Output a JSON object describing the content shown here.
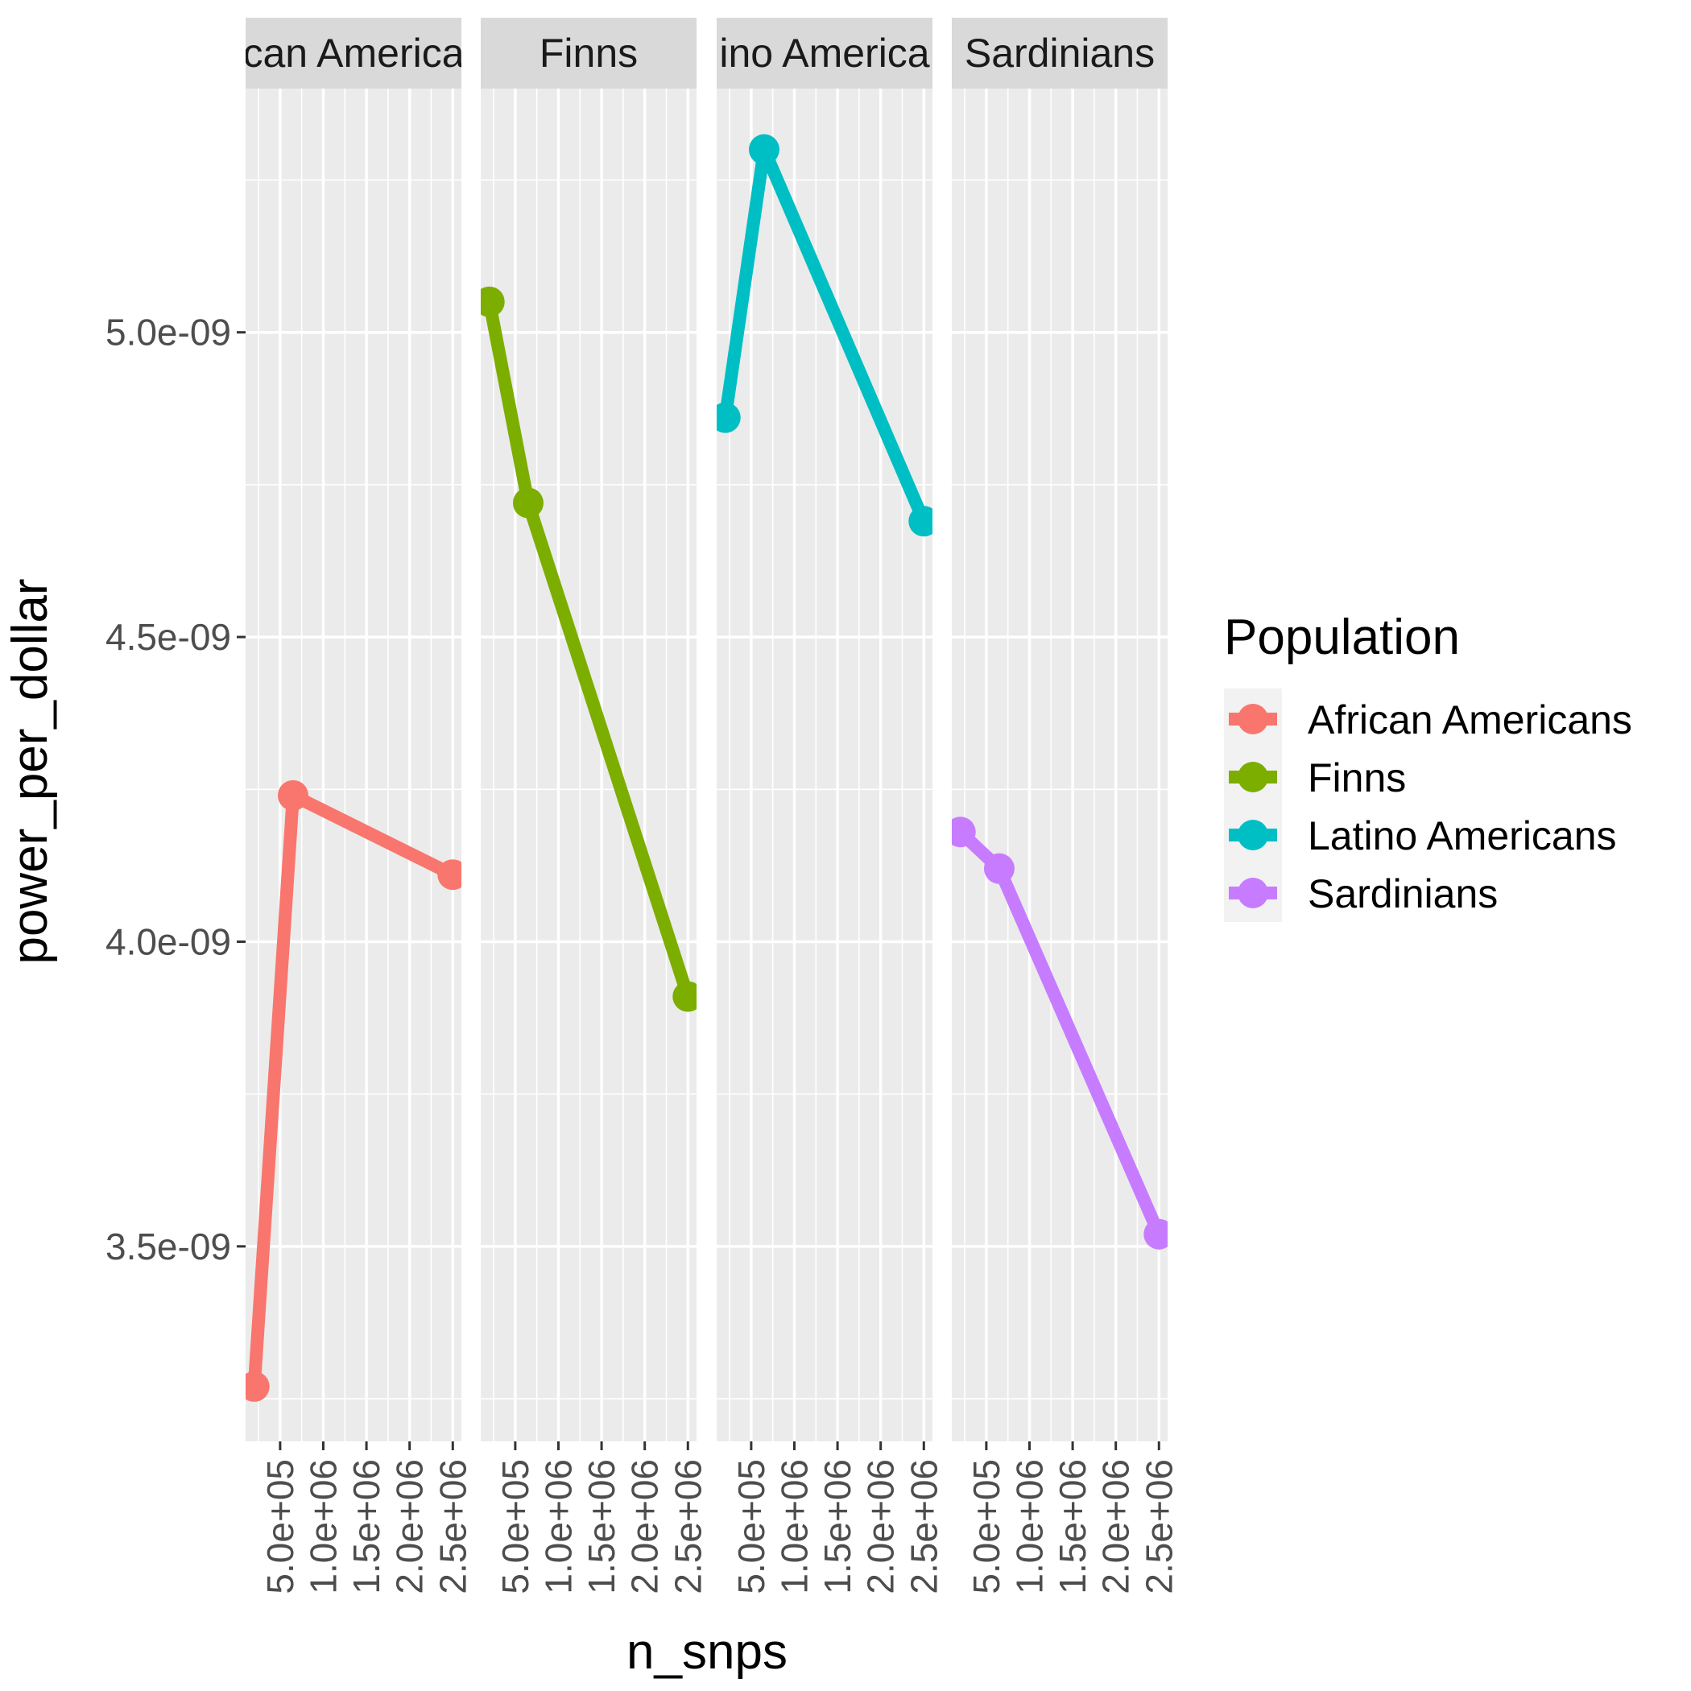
{
  "chart_data": {
    "type": "line",
    "facet_by": "Population",
    "xlabel": "n_snps",
    "ylabel": "power_per_dollar",
    "legend_title": "Population",
    "legend_position": "right",
    "xlim": [
      100000,
      2600000
    ],
    "ylim": [
      3.18e-09,
      5.4e-09
    ],
    "x_ticks": [
      500000,
      1000000,
      1500000,
      2000000,
      2500000
    ],
    "x_tick_labels": [
      "5.0e+05",
      "1.0e+06",
      "1.5e+06",
      "2.0e+06",
      "2.5e+06"
    ],
    "y_ticks": [
      3.5e-09,
      4e-09,
      4.5e-09,
      5e-09
    ],
    "y_tick_labels": [
      "3.5e-09",
      "4.0e-09",
      "4.5e-09",
      "5.0e-09"
    ],
    "grid": true,
    "facets": [
      {
        "strip_label": "African Americans",
        "strip_visible": "can America"
      },
      {
        "strip_label": "Finns",
        "strip_visible": "Finns"
      },
      {
        "strip_label": "Latino Americans",
        "strip_visible": "ino America"
      },
      {
        "strip_label": "Sardinians",
        "strip_visible": "Sardinians"
      }
    ],
    "series": [
      {
        "name": "African Americans",
        "color": "#F8766D",
        "x": [
          200000,
          650000,
          2500000
        ],
        "y": [
          3.27e-09,
          4.24e-09,
          4.11e-09
        ]
      },
      {
        "name": "Finns",
        "color": "#7CAE00",
        "x": [
          200000,
          650000,
          2500000
        ],
        "y": [
          5.05e-09,
          4.72e-09,
          3.91e-09
        ]
      },
      {
        "name": "Latino Americans",
        "color": "#00BFC4",
        "x": [
          200000,
          650000,
          2500000
        ],
        "y": [
          4.86e-09,
          5.3e-09,
          4.69e-09
        ]
      },
      {
        "name": "Sardinians",
        "color": "#C77CFF",
        "x": [
          200000,
          650000,
          2500000
        ],
        "y": [
          4.18e-09,
          4.12e-09,
          3.52e-09
        ]
      }
    ]
  }
}
